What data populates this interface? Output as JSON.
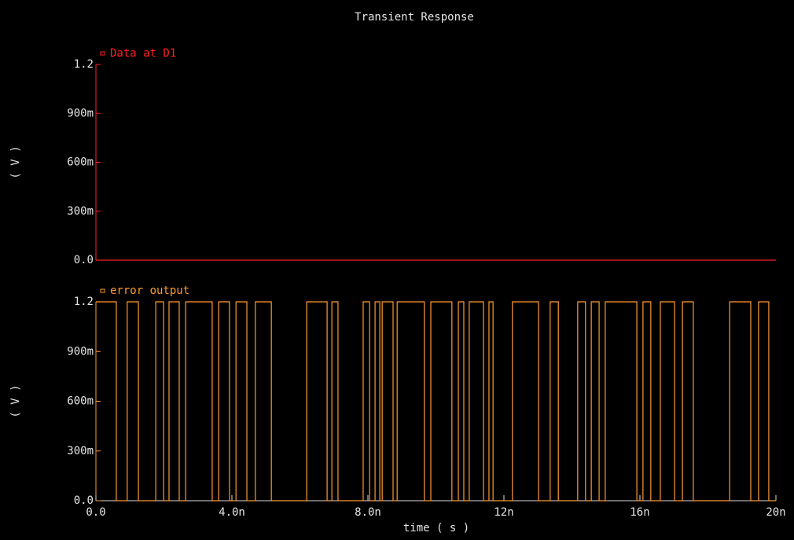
{
  "chart_data": [
    {
      "type": "line",
      "title": "Transient Response",
      "y_label": "( V )",
      "xlim": [
        0,
        2e-08
      ],
      "ylim": [
        0,
        1.2
      ],
      "yticks": [
        {
          "value": 0,
          "label": "0.0"
        },
        {
          "value": 0.3,
          "label": "300m"
        },
        {
          "value": 0.6,
          "label": "600m"
        },
        {
          "value": 0.9,
          "label": "900m"
        },
        1.2
      ],
      "x": [
        0,
        2e-08
      ],
      "series": [
        {
          "name": "Data at D1",
          "color": "#ff2020",
          "values": [
            0,
            0
          ]
        }
      ]
    },
    {
      "type": "line",
      "y_label": "( V )",
      "x_label": "time ( s )",
      "xlim": [
        0,
        2e-08
      ],
      "ylim": [
        0,
        1.2
      ],
      "yticks": [
        {
          "value": 0,
          "label": "0.0"
        },
        {
          "value": 0.3,
          "label": "300m"
        },
        {
          "value": 0.6,
          "label": "600m"
        },
        {
          "value": 0.9,
          "label": "900m"
        },
        1.2
      ],
      "xticks": [
        {
          "value": 0,
          "label": "0.0"
        },
        {
          "value": 4e-09,
          "label": "4.0n"
        },
        {
          "value": 8e-09,
          "label": "8.0n"
        },
        {
          "value": 1.2e-08,
          "label": "12n"
        },
        {
          "value": 1.6e-08,
          "label": "16n"
        },
        {
          "value": 2e-08,
          "label": "20n"
        }
      ],
      "x": [
        0,
        6e-10,
        6e-10,
        9.2e-10,
        9.2e-10,
        1.25e-09,
        1.25e-09,
        1.76e-09,
        1.76e-09,
        1.99e-09,
        1.99e-09,
        2.15e-09,
        2.15e-09,
        2.45e-09,
        2.45e-09,
        2.64e-09,
        2.64e-09,
        3.42e-09,
        3.42e-09,
        3.61e-09,
        3.61e-09,
        3.93e-09,
        3.93e-09,
        4.12e-09,
        4.12e-09,
        4.44e-09,
        4.44e-09,
        4.69e-09,
        4.69e-09,
        5.16e-09,
        5.16e-09,
        6.2e-09,
        6.2e-09,
        6.8e-09,
        6.8e-09,
        6.94e-09,
        6.94e-09,
        7.12e-09,
        7.12e-09,
        7.86e-09,
        7.86e-09,
        8.05e-09,
        8.05e-09,
        8.21e-09,
        8.21e-09,
        8.35e-09,
        8.35e-09,
        8.42e-09,
        8.42e-09,
        8.74e-09,
        8.74e-09,
        8.86e-09,
        8.86e-09,
        9.66e-09,
        9.66e-09,
        9.85e-09,
        9.85e-09,
        1.047e-08,
        1.047e-08,
        1.066e-08,
        1.066e-08,
        1.082e-08,
        1.082e-08,
        1.098e-08,
        1.098e-08,
        1.14e-08,
        1.14e-08,
        1.156e-08,
        1.156e-08,
        1.168e-08,
        1.168e-08,
        1.225e-08,
        1.225e-08,
        1.302e-08,
        1.302e-08,
        1.336e-08,
        1.336e-08,
        1.36e-08,
        1.36e-08,
        1.417e-08,
        1.417e-08,
        1.44e-08,
        1.44e-08,
        1.457e-08,
        1.457e-08,
        1.48e-08,
        1.48e-08,
        1.498e-08,
        1.498e-08,
        1.591e-08,
        1.591e-08,
        1.609e-08,
        1.609e-08,
        1.632e-08,
        1.632e-08,
        1.66e-08,
        1.66e-08,
        1.702e-08,
        1.702e-08,
        1.725e-08,
        1.725e-08,
        1.757e-08,
        1.757e-08,
        1.864e-08,
        1.864e-08,
        1.926e-08,
        1.926e-08,
        1.949e-08,
        1.949e-08,
        1.979e-08,
        1.979e-08,
        2e-08
      ],
      "series": [
        {
          "name": "error output",
          "color": "#ff9a30",
          "values": [
            1.2,
            1.2,
            0,
            0,
            1.2,
            1.2,
            0,
            0,
            1.2,
            1.2,
            0,
            0,
            1.2,
            1.2,
            0,
            0,
            1.2,
            1.2,
            0,
            0,
            1.2,
            1.2,
            0,
            0,
            1.2,
            1.2,
            0,
            0,
            1.2,
            1.2,
            0,
            0,
            1.2,
            1.2,
            0,
            0,
            1.2,
            1.2,
            0,
            0,
            1.2,
            1.2,
            0,
            0,
            1.2,
            1.2,
            0,
            0,
            1.2,
            1.2,
            0,
            0,
            1.2,
            1.2,
            0,
            0,
            1.2,
            1.2,
            0,
            0,
            1.2,
            1.2,
            0,
            0,
            1.2,
            1.2,
            0,
            0,
            1.2,
            1.2,
            0,
            0,
            1.2,
            1.2,
            0,
            0,
            1.2,
            1.2,
            0,
            0,
            1.2,
            1.2,
            0,
            0,
            1.2,
            1.2,
            0,
            0,
            1.2,
            1.2,
            0,
            0,
            1.2,
            1.2,
            0,
            0,
            1.2,
            1.2,
            0,
            0,
            1.2,
            1.2,
            0,
            0,
            1.2,
            1.2,
            0,
            0,
            1.2,
            1.2,
            0,
            0
          ]
        }
      ]
    }
  ]
}
